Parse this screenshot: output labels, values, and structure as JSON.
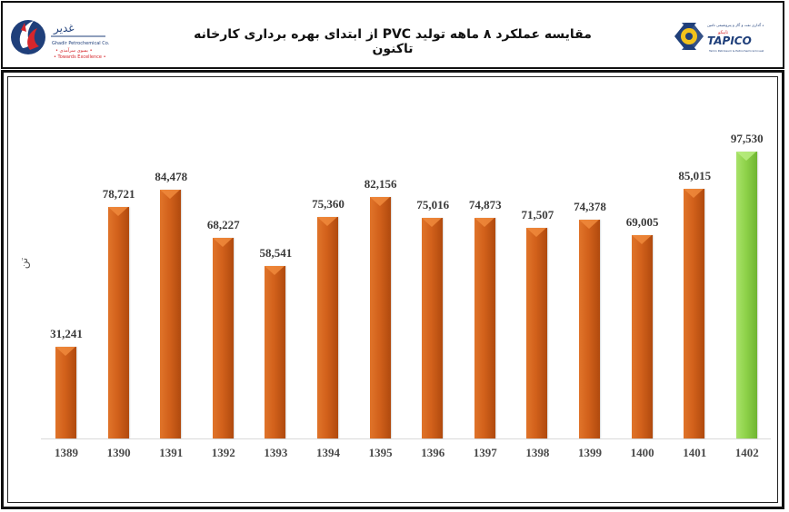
{
  "header": {
    "title": "مقایسه عملکرد ۸ ماهه تولید PVC از ابتدای بهره برداری کارخانه تاکنون",
    "logo_left": {
      "name": "Ghadir Petrochemical Co.",
      "tagline": "Towards Excellence"
    },
    "logo_right": {
      "name": "TAPICO"
    }
  },
  "chart_data": {
    "type": "bar",
    "title": "مقایسه عملکرد ۸ ماهه تولید PVC از ابتدای بهره برداری کارخانه تاکنون",
    "xlabel": "",
    "ylabel": "تن",
    "categories": [
      "1389",
      "1390",
      "1391",
      "1392",
      "1393",
      "1394",
      "1395",
      "1396",
      "1397",
      "1398",
      "1399",
      "1400",
      "1401",
      "1402"
    ],
    "values": [
      31241,
      78721,
      84478,
      68227,
      58541,
      75360,
      82156,
      75016,
      74873,
      71507,
      74378,
      69005,
      85015,
      97530
    ],
    "value_labels": [
      "31,241",
      "78,721",
      "84,478",
      "68,227",
      "58,541",
      "75,360",
      "82,156",
      "75,016",
      "74,873",
      "71,507",
      "74,378",
      "69,005",
      "85,015",
      "97,530"
    ],
    "colors": {
      "default": "#d2611b",
      "highlight": "#8fd24a"
    },
    "highlight_index": 13,
    "ylim": [
      0,
      100000
    ],
    "grid": false,
    "legend": "none"
  }
}
